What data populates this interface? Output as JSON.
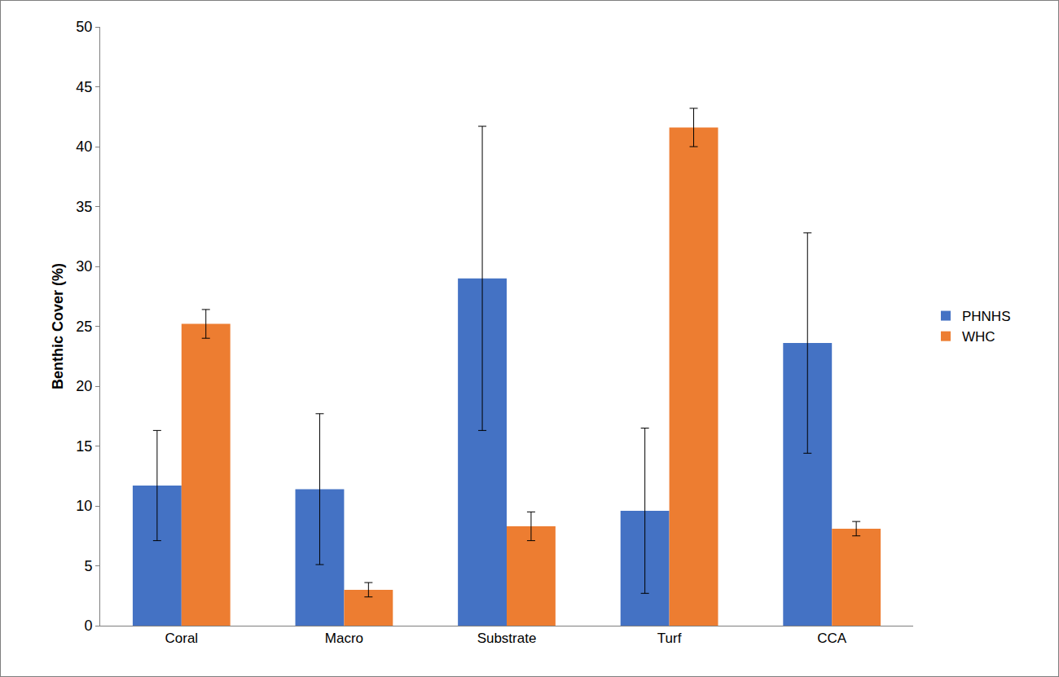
{
  "chart_data": {
    "type": "bar",
    "y_label": "Benthic Cover (%)",
    "categories": [
      "Coral",
      "Macro",
      "Substrate",
      "Turf",
      "CCA"
    ],
    "series": [
      {
        "name": "PHNHS",
        "color": "#4472c4",
        "values": [
          11.7,
          11.4,
          29.0,
          9.6,
          23.6
        ],
        "error": [
          4.6,
          6.3,
          12.7,
          6.9,
          9.2
        ]
      },
      {
        "name": "WHC",
        "color": "#ed7d31",
        "values": [
          25.2,
          3.0,
          8.3,
          41.6,
          8.1
        ],
        "error": [
          1.2,
          0.6,
          1.2,
          1.6,
          0.6
        ]
      }
    ],
    "ylim": [
      0,
      50
    ],
    "yticks": [
      0,
      5,
      10,
      15,
      20,
      25,
      30,
      35,
      40,
      45,
      50
    ],
    "grid": false,
    "legend": "right"
  }
}
